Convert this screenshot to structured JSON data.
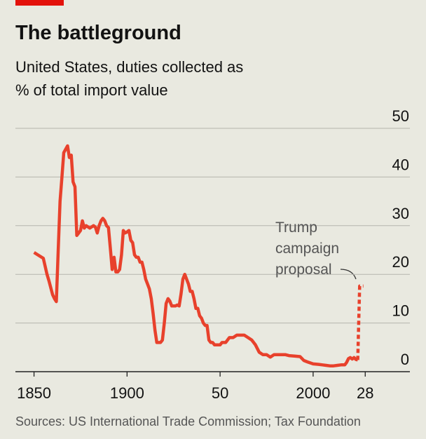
{
  "chart_data": {
    "type": "line",
    "title": "The battleground",
    "subtitle": [
      "United States, duties collected as",
      "% of total import value"
    ],
    "source": "Sources: US International Trade Commission; Tax Foundation",
    "annotation": [
      "Trump",
      "campaign",
      "proposal"
    ],
    "xlim": [
      1840,
      2052
    ],
    "xticks": [
      1850,
      1900,
      {
        "value": 1950,
        "label": "50"
      },
      2000,
      {
        "value": 2028,
        "label": "28"
      }
    ],
    "ylim": [
      0,
      50
    ],
    "yticks": [
      0,
      10,
      20,
      30,
      40,
      50
    ],
    "grid": true,
    "series": [
      {
        "color": "#e8412c",
        "dashed": false,
        "x": [
          1850,
          1852,
          1855,
          1857,
          1858,
          1860,
          1861,
          1862,
          1863,
          1864,
          1865,
          1866,
          1868,
          1869,
          1870,
          1871,
          1872,
          1873,
          1874,
          1875,
          1876,
          1877,
          1878,
          1880,
          1882,
          1883,
          1884,
          1885,
          1886,
          1887,
          1888,
          1889,
          1890,
          1891,
          1892,
          1893,
          1894,
          1895,
          1896,
          1897,
          1898,
          1899,
          1900,
          1901,
          1902,
          1903,
          1904,
          1905,
          1906,
          1907,
          1908,
          1909,
          1910,
          1911,
          1912,
          1913,
          1914,
          1915,
          1916,
          1917,
          1918,
          1919,
          1920,
          1921,
          1922,
          1923,
          1924,
          1925,
          1926,
          1927,
          1928,
          1929,
          1930,
          1931,
          1932,
          1933,
          1934,
          1935,
          1936,
          1937,
          1938,
          1939,
          1940,
          1941,
          1942,
          1943,
          1944,
          1945,
          1946,
          1947,
          1948,
          1950,
          1951,
          1953,
          1955,
          1957,
          1959,
          1961,
          1963,
          1965,
          1967,
          1969,
          1971,
          1973,
          1975,
          1977,
          1979,
          1981,
          1983,
          1985,
          1987,
          1990,
          1993,
          1995,
          1997,
          2000,
          2003,
          2005,
          2007,
          2009,
          2011,
          2013,
          2015,
          2017,
          2018,
          2019,
          2020,
          2021,
          2022,
          2023,
          2024
        ],
        "values": [
          24.5,
          24,
          23.3,
          20,
          18.7,
          15.8,
          15,
          14.4,
          25,
          35,
          40,
          45,
          46.4,
          44,
          44.5,
          39,
          38,
          28,
          28.5,
          29,
          31,
          29.5,
          30,
          29.5,
          30,
          29.7,
          28.5,
          30,
          31,
          31.5,
          31,
          30,
          29.6,
          25.5,
          21,
          23.5,
          20.5,
          20.5,
          21,
          24,
          29,
          28.5,
          28.7,
          29,
          27,
          26.5,
          24,
          23.5,
          23.5,
          22.5,
          22.5,
          21,
          19,
          18,
          17,
          15,
          12,
          8.5,
          6,
          6,
          6,
          6.5,
          10,
          14,
          15,
          14.5,
          13.5,
          13.5,
          13.5,
          13.7,
          13.5,
          16,
          19,
          20,
          19,
          18,
          16.5,
          16.5,
          15,
          13,
          13,
          11.5,
          11,
          10,
          9.5,
          9.5,
          6.5,
          6,
          6,
          5.5,
          5.5,
          5.5,
          6,
          6,
          7,
          7,
          7.5,
          7.5,
          7.5,
          7,
          6.5,
          5.5,
          4,
          3.5,
          3.5,
          3,
          3.5,
          3.5,
          3.5,
          3.5,
          3.3,
          3.2,
          3.1,
          2.3,
          2,
          1.6,
          1.5,
          1.4,
          1.3,
          1.2,
          1.2,
          1.3,
          1.4,
          1.4,
          1.9,
          2.7,
          2.9,
          2.6,
          2.9,
          2.5,
          2.4
        ]
      },
      {
        "color": "#e8412c",
        "dashed": true,
        "x": [
          2024,
          2025,
          2027
        ],
        "values": [
          2.4,
          17.6,
          17.6
        ]
      }
    ]
  }
}
